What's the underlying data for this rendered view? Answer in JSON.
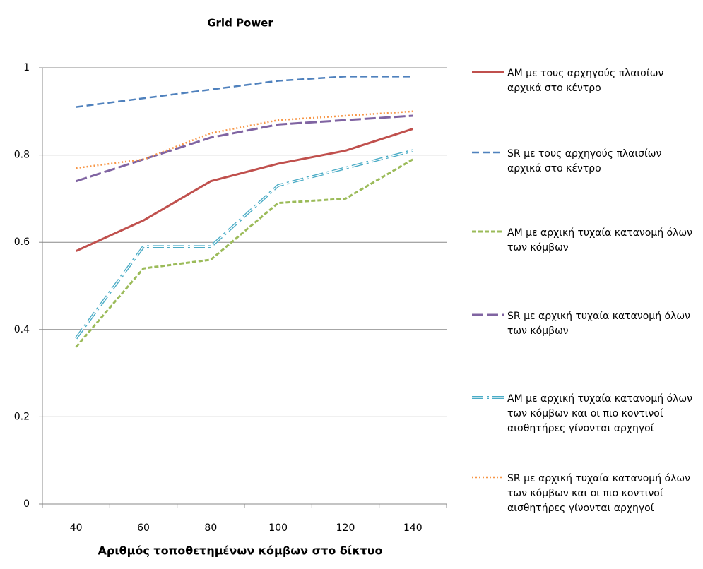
{
  "chart_data": {
    "type": "line",
    "title": "Grid Power",
    "x_label": "Αριθμός τοποθετημένων κόμβων στο δίκτυο",
    "categories": [
      "40",
      "60",
      "80",
      "100",
      "120",
      "140"
    ],
    "ylim": [
      0,
      1
    ],
    "yticks": [
      0,
      0.2,
      0.4,
      0.6,
      0.8,
      1
    ],
    "grid": true,
    "legend": "right",
    "series": [
      {
        "name": "AM με τους αρχηγούς πλαισίων αρχικά στο κέντρο",
        "color": "#c0504d",
        "values": [
          0.58,
          0.65,
          0.74,
          0.78,
          0.81,
          0.86
        ]
      },
      {
        "name": "SR με τους αρχηγούς πλαισίων αρχικά στο κέντρο",
        "color": "#4f81bd",
        "values": [
          0.91,
          0.93,
          0.95,
          0.97,
          0.98,
          0.98
        ]
      },
      {
        "name": "AM με αρχική τυχαία κατανομή όλων των κόμβων",
        "color": "#9bbb59",
        "values": [
          0.36,
          0.54,
          0.56,
          0.69,
          0.7,
          0.79
        ]
      },
      {
        "name": "SR με αρχική τυχαία κατανομή όλων των κόμβων",
        "color": "#8064a2",
        "values": [
          0.74,
          0.79,
          0.84,
          0.87,
          0.88,
          0.89
        ]
      },
      {
        "name": "AM με αρχική τυχαία κατανομή όλων των κόμβων και οι πιο κοντινοί αισθητήρες γίνονται αρχηγοί",
        "color": "#4bacc6",
        "values": [
          0.38,
          0.59,
          0.59,
          0.73,
          0.77,
          0.81
        ]
      },
      {
        "name": "SR με αρχική τυχαία κατανομή όλων των κόμβων και οι πιο κοντινοί αισθητήρες γίνονται αρχηγοί",
        "color": "#f79646",
        "values": [
          0.77,
          0.79,
          0.85,
          0.88,
          0.89,
          0.9
        ]
      }
    ]
  }
}
